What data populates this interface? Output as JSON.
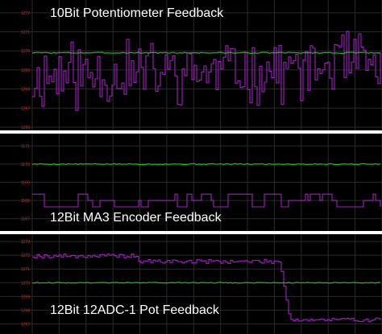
{
  "chart_data": [
    {
      "type": "line",
      "title": "10Bit Potentiometer Feedback",
      "xlabel": "",
      "ylabel": "",
      "ylim": [
        1266,
        1272.5
      ],
      "y_ticks": [
        "1272",
        "1271",
        "1270",
        "1269",
        "1268",
        "1267",
        "1266"
      ],
      "grid": true,
      "series": [
        {
          "color": "#a020c0",
          "pattern": "noise",
          "level_start": 1268.6,
          "level_end": 1269.2,
          "amplitude": 1.2,
          "seed": 11
        },
        {
          "color": "#20c020",
          "pattern": "flat",
          "level_start": 1269.9,
          "level_end": 1269.9,
          "amplitude": 0.03,
          "seed": 3
        }
      ]
    },
    {
      "type": "line",
      "title": "12Bit MA3 Encoder Feedback",
      "xlabel": "",
      "ylabel": "",
      "ylim": [
        1166.5,
        1171.5
      ],
      "y_ticks": [
        "1171",
        "1170",
        "1169",
        "1168",
        "1167"
      ],
      "grid": true,
      "series": [
        {
          "color": "#a020c0",
          "pattern": "steps",
          "level_start": 1168.0,
          "level_end": 1168.0,
          "amplitude": 0.35,
          "seed": 7
        },
        {
          "color": "#20c020",
          "pattern": "flat",
          "level_start": 1170.0,
          "level_end": 1170.0,
          "amplitude": 0.03,
          "seed": 5
        }
      ]
    },
    {
      "type": "line",
      "title": "12Bit 12ADC-1 Pot Feedback",
      "xlabel": "",
      "ylabel": "",
      "ylim": [
        1266.5,
        1273.3
      ],
      "y_ticks": [
        "1273",
        "1272",
        "1271",
        "1270",
        "1269",
        "1268",
        "1267"
      ],
      "grid": true,
      "series": [
        {
          "color": "#a020c0",
          "pattern": "drop",
          "level_start": 1271.8,
          "level_end": 1267.3,
          "amplitude": 0.15,
          "seed": 19
        },
        {
          "color": "#20c020",
          "pattern": "flat",
          "level_start": 1270.0,
          "level_end": 1270.0,
          "amplitude": 0.03,
          "seed": 9
        }
      ]
    }
  ]
}
